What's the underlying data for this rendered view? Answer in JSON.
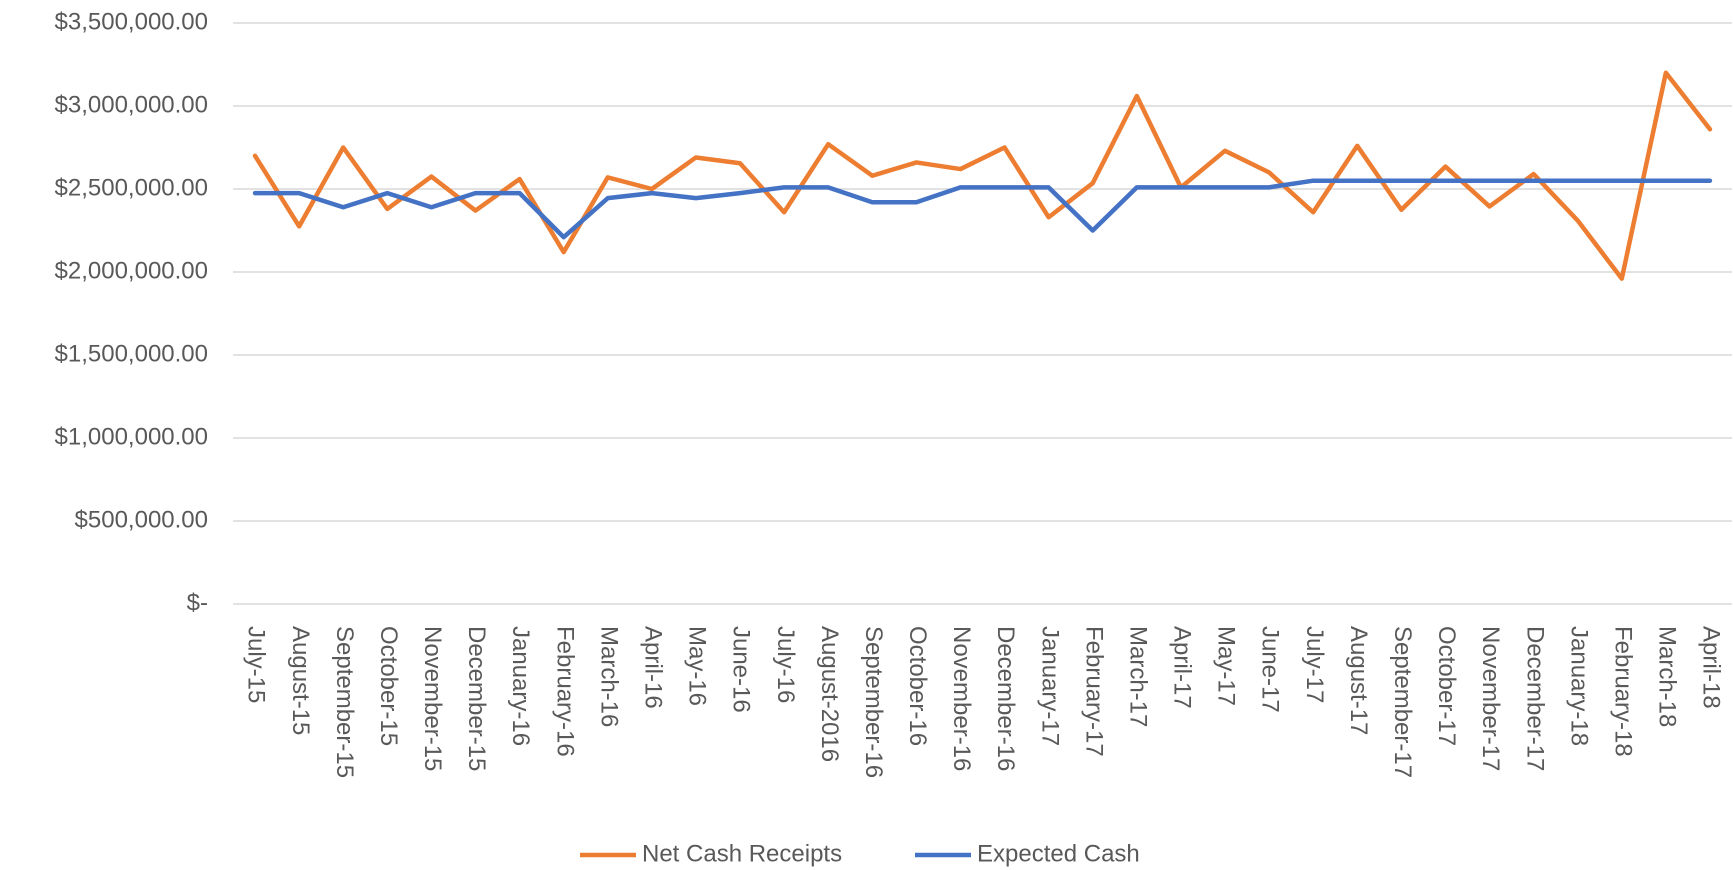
{
  "chart_data": {
    "type": "line",
    "categories": [
      "July-15",
      "August-15",
      "September-15",
      "October-15",
      "November-15",
      "December-15",
      "January-16",
      "February-16",
      "March-16",
      "April-16",
      "May-16",
      "June-16",
      "July-16",
      "August-2016",
      "September-16",
      "October-16",
      "November-16",
      "December-16",
      "January-17",
      "February-17",
      "March-17",
      "April-17",
      "May-17",
      "June-17",
      "July-17",
      "August-17",
      "September-17",
      "October-17",
      "November-17",
      "December-17",
      "January-18",
      "February-18",
      "March-18",
      "April-18"
    ],
    "series": [
      {
        "name": "Net Cash Receipts",
        "color": "#ed7d31",
        "values": [
          2700000,
          2275000,
          2750000,
          2380000,
          2575000,
          2370000,
          2560000,
          2120000,
          2570000,
          2500000,
          2690000,
          2655000,
          2360000,
          2770000,
          2580000,
          2660000,
          2620000,
          2750000,
          2330000,
          2535000,
          3060000,
          2510000,
          2730000,
          2600000,
          2360000,
          2760000,
          2375000,
          2635000,
          2395000,
          2590000,
          2310000,
          1960000,
          3200000,
          2860000
        ]
      },
      {
        "name": "Expected Cash",
        "color": "#4472c4",
        "values": [
          2475000,
          2475000,
          2390000,
          2475000,
          2390000,
          2475000,
          2475000,
          2210000,
          2445000,
          2475000,
          2445000,
          2475000,
          2510000,
          2510000,
          2420000,
          2420000,
          2510000,
          2510000,
          2510000,
          2250000,
          2510000,
          2510000,
          2510000,
          2510000,
          2550000,
          2550000,
          2550000,
          2550000,
          2550000,
          2550000,
          2550000,
          2550000,
          2550000,
          2550000
        ]
      }
    ],
    "ylim": [
      0,
      3500000
    ],
    "yticks": [
      {
        "value": 0,
        "label": "$-"
      },
      {
        "value": 500000,
        "label": "$500,000.00"
      },
      {
        "value": 1000000,
        "label": "$1,000,000.00"
      },
      {
        "value": 1500000,
        "label": "$1,500,000.00"
      },
      {
        "value": 2000000,
        "label": "$2,000,000.00"
      },
      {
        "value": 2500000,
        "label": "$2,500,000.00"
      },
      {
        "value": 3000000,
        "label": "$3,000,000.00"
      },
      {
        "value": 3500000,
        "label": "$3,500,000.00"
      }
    ],
    "grid": true,
    "legend": "bottom"
  }
}
